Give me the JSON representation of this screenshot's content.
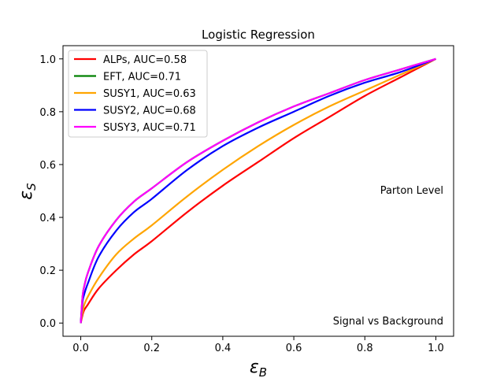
{
  "chart_data": {
    "type": "line",
    "title": "Logistic Regression",
    "xlabel": "εB",
    "ylabel": "εS",
    "xlim": [
      -0.05,
      1.05
    ],
    "ylim": [
      -0.05,
      1.05
    ],
    "xticks": [
      "0.0",
      "0.2",
      "0.4",
      "0.6",
      "0.8",
      "1.0"
    ],
    "yticks": [
      "0.0",
      "0.2",
      "0.4",
      "0.6",
      "0.8",
      "1.0"
    ],
    "grid": false,
    "legend_position": "top-left",
    "annotations": [
      "Parton Level",
      "Signal vs Background"
    ],
    "x": [
      0,
      0.005,
      0.01,
      0.02,
      0.05,
      0.1,
      0.15,
      0.2,
      0.3,
      0.4,
      0.5,
      0.6,
      0.7,
      0.8,
      0.9,
      1.0
    ],
    "series": [
      {
        "name": "ALPs, AUC=0.58",
        "color": "#ff0000",
        "values": [
          0,
          0.03,
          0.05,
          0.07,
          0.13,
          0.2,
          0.26,
          0.31,
          0.42,
          0.52,
          0.61,
          0.7,
          0.78,
          0.86,
          0.93,
          1.0
        ]
      },
      {
        "name": "EFT, AUC=0.71",
        "color": "#008000",
        "values": [
          0,
          0.1,
          0.14,
          0.19,
          0.29,
          0.39,
          0.46,
          0.51,
          0.61,
          0.69,
          0.76,
          0.82,
          0.87,
          0.92,
          0.96,
          1.0
        ]
      },
      {
        "name": "SUSY1, AUC=0.63",
        "color": "#ffa500",
        "values": [
          0,
          0.04,
          0.07,
          0.1,
          0.17,
          0.26,
          0.32,
          0.37,
          0.48,
          0.58,
          0.67,
          0.75,
          0.82,
          0.88,
          0.94,
          1.0
        ]
      },
      {
        "name": "SUSY2, AUC=0.68",
        "color": "#0000ff",
        "values": [
          0,
          0.08,
          0.11,
          0.15,
          0.25,
          0.35,
          0.42,
          0.47,
          0.58,
          0.67,
          0.74,
          0.8,
          0.86,
          0.91,
          0.95,
          1.0
        ]
      },
      {
        "name": "SUSY3, AUC=0.71",
        "color": "#ff00ff",
        "values": [
          0,
          0.1,
          0.14,
          0.19,
          0.29,
          0.39,
          0.46,
          0.51,
          0.61,
          0.69,
          0.76,
          0.82,
          0.87,
          0.92,
          0.96,
          1.0
        ]
      }
    ]
  }
}
